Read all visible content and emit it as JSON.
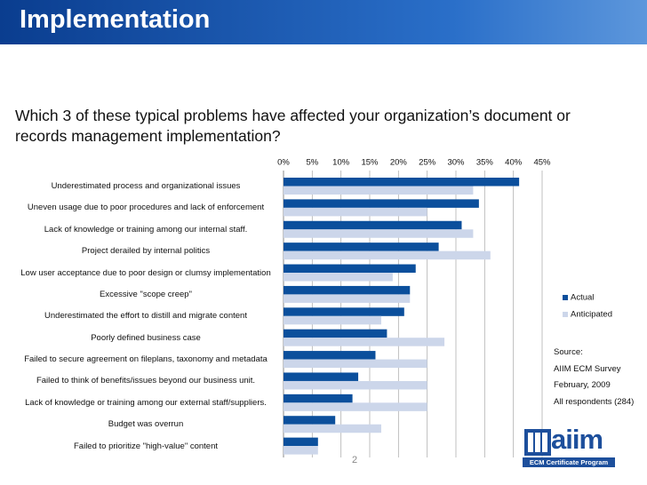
{
  "header": {
    "title": "Implementation"
  },
  "question": "Which 3 of these typical problems have affected your organization’s document or records management implementation?",
  "chart_data": {
    "type": "bar",
    "orientation": "horizontal",
    "categories": [
      "Underestimated process and organizational issues",
      "Uneven usage due to poor procedures and lack of enforcement",
      "Lack of knowledge or training among our internal staff.",
      "Project derailed by internal politics",
      "Low user acceptance due to poor design or clumsy implementation",
      "Excessive \"scope creep\"",
      "Underestimated the effort to distill and migrate content",
      "Poorly defined business case",
      "Failed to secure agreement on fileplans, taxonomy and metadata",
      "Failed to think of benefits/issues beyond our business unit.",
      "Lack of knowledge or training among our external staff/suppliers.",
      "Budget was overrun",
      "Failed to prioritize \"high-value\" content"
    ],
    "series": [
      {
        "name": "Actual",
        "color": "#0b4f9c",
        "values": [
          41,
          34,
          31,
          27,
          23,
          22,
          21,
          18,
          16,
          13,
          12,
          9,
          6
        ]
      },
      {
        "name": "Anticipated",
        "color": "#ccd6ea",
        "values": [
          33,
          25,
          33,
          36,
          19,
          22,
          17,
          28,
          25,
          25,
          25,
          17,
          6
        ]
      }
    ],
    "xlim": [
      0,
      45
    ],
    "xticks": [
      {
        "value": 0,
        "label": "0%"
      },
      {
        "value": 5,
        "label": "5%"
      },
      {
        "value": 10,
        "label": "10%"
      },
      {
        "value": 15,
        "label": "15%"
      },
      {
        "value": 20,
        "label": "20%"
      },
      {
        "value": 25,
        "label": "25%"
      },
      {
        "value": 30,
        "label": "30%"
      },
      {
        "value": 35,
        "label": "35%"
      },
      {
        "value": 40,
        "label": "40%"
      },
      {
        "value": 45,
        "label": "45%"
      }
    ],
    "grid": true
  },
  "source": [
    "Source:",
    "AIIM ECM Survey",
    "February, 2009",
    "All respondents (284)"
  ],
  "page_number": "2",
  "logo": {
    "name": "aiim",
    "tagline": "ECM Certificate Program"
  }
}
